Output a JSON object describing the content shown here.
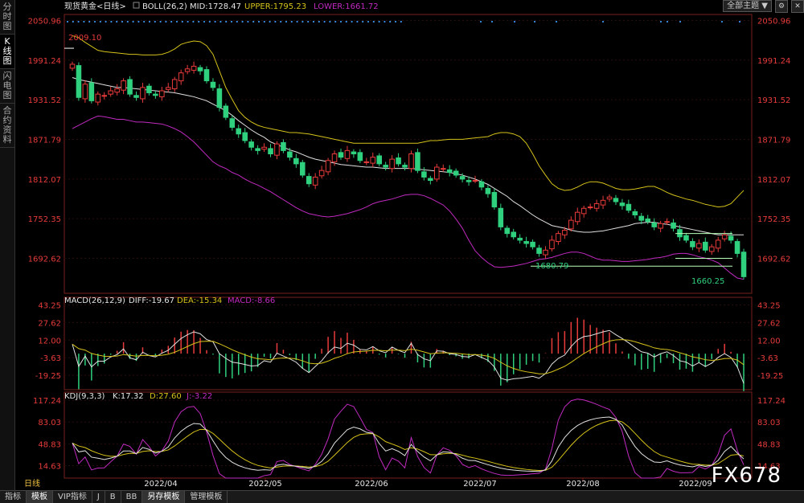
{
  "sidebar": {
    "tabs": [
      "分时图",
      "K线图",
      "闪电图",
      "合约资料"
    ]
  },
  "main": {
    "title": "现货黄金<日线>",
    "boll_label": "BOLL(26,2)",
    "mid_label": "MID:1728.47",
    "upper_label": "UPPER:1795.23",
    "lower_label": "LOWER:1661.72",
    "theme_select": "全部主题",
    "ann_high": "2009.10",
    "ann_mid": "1680.79",
    "ann_low": "1660.25",
    "yticks": [
      "2050.96",
      "1991.24",
      "1931.52",
      "1871.79",
      "1812.07",
      "1752.35",
      "1692.62"
    ]
  },
  "macd": {
    "title": "MACD(26,12,9)",
    "diff": "DIFF:-19.67",
    "dea": "DEA:-15.34",
    "macd": "MACD:-8.66",
    "yticks": [
      "43.25",
      "27.62",
      "12.00",
      "-3.63",
      "-19.25"
    ]
  },
  "kdj": {
    "title": "KDJ(9,3,3)",
    "k": "K:17.32",
    "d": "D:27.60",
    "j": "J:-3.22",
    "yticks": [
      "117.24",
      "83.03",
      "48.83",
      "14.63"
    ]
  },
  "xaxis": {
    "labels": [
      "2022/04",
      "2022/05",
      "2022/06",
      "2022/07",
      "2022/08",
      "2022/09"
    ],
    "period": "日线"
  },
  "bottom": {
    "tabs": [
      "指标",
      "模板",
      "VIP指标",
      "J",
      "B",
      "BB",
      "另存模板",
      "管理模板"
    ]
  },
  "watermark": "FX678",
  "colors": {
    "up": "#e83b3b",
    "down": "#2fd07e",
    "upper": "#d4c21a",
    "mid": "#e0e0e0",
    "lower": "#c02ac0",
    "dea": "#d4c21a",
    "kdj_j": "#c02ac0"
  },
  "chart_data": {
    "type": "candlestick",
    "title": "现货黄金<日线>",
    "ylim": [
      1640,
      2060
    ],
    "close": [
      1985,
      1935,
      1955,
      1930,
      1940,
      1938,
      1945,
      1948,
      1960,
      1940,
      1935,
      1950,
      1942,
      1938,
      1945,
      1950,
      1962,
      1972,
      1978,
      1982,
      1975,
      1960,
      1950,
      1920,
      1905,
      1890,
      1880,
      1870,
      1860,
      1855,
      1860,
      1850,
      1865,
      1855,
      1845,
      1835,
      1818,
      1805,
      1815,
      1825,
      1840,
      1850,
      1845,
      1855,
      1850,
      1840,
      1838,
      1845,
      1835,
      1830,
      1842,
      1835,
      1830,
      1850,
      1825,
      1815,
      1810,
      1830,
      1828,
      1822,
      1818,
      1812,
      1808,
      1810,
      1800,
      1790,
      1770,
      1740,
      1730,
      1725,
      1720,
      1715,
      1710,
      1700,
      1705,
      1720,
      1730,
      1735,
      1750,
      1762,
      1768,
      1770,
      1775,
      1780,
      1785,
      1778,
      1772,
      1765,
      1758,
      1750,
      1748,
      1740,
      1745,
      1748,
      1738,
      1725,
      1720,
      1710,
      1715,
      1705,
      1710,
      1720,
      1728,
      1720,
      1700,
      1665
    ],
    "series": [
      {
        "name": "MID",
        "values": [
          1965,
          1962,
          1960,
          1958,
          1956,
          1954,
          1952,
          1950,
          1950,
          1949,
          1948,
          1947,
          1946,
          1945,
          1944,
          1943,
          1942,
          1940,
          1938,
          1936,
          1933,
          1930,
          1925,
          1920,
          1915,
          1908,
          1900,
          1893,
          1886,
          1880,
          1875,
          1868,
          1864,
          1860,
          1856,
          1853,
          1849,
          1845,
          1842,
          1840,
          1838,
          1836,
          1834,
          1833,
          1832,
          1831,
          1830,
          1830,
          1829,
          1828,
          1828,
          1828,
          1828,
          1828,
          1827,
          1826,
          1825,
          1824,
          1823,
          1822,
          1820,
          1818,
          1815,
          1812,
          1808,
          1804,
          1798,
          1792,
          1786,
          1778,
          1772,
          1765,
          1758,
          1752,
          1747,
          1742,
          1740,
          1738,
          1735,
          1733,
          1732,
          1732,
          1733,
          1734,
          1736,
          1738,
          1740,
          1742,
          1745,
          1746,
          1747,
          1747,
          1745,
          1744,
          1742,
          1740,
          1738,
          1736,
          1734,
          1732,
          1730,
          1728,
          1728,
          1728,
          1728,
          1728
        ]
      },
      {
        "name": "UPPER",
        "values": [
          2028,
          2025,
          2018,
          2012,
          2006,
          2004,
          2003,
          2002,
          2001,
          2000,
          2000,
          1999,
          1999,
          1999,
          2000,
          2003,
          2008,
          2015,
          2018,
          2020,
          2019,
          2013,
          2000,
          1975,
          1950,
          1932,
          1915,
          1905,
          1898,
          1893,
          1890,
          1888,
          1886,
          1884,
          1882,
          1882,
          1881,
          1880,
          1878,
          1876,
          1874,
          1872,
          1870,
          1868,
          1866,
          1866,
          1866,
          1866,
          1866,
          1866,
          1866,
          1866,
          1866,
          1866,
          1866,
          1868,
          1870,
          1870,
          1871,
          1872,
          1872,
          1872,
          1873,
          1874,
          1875,
          1876,
          1880,
          1882,
          1882,
          1880,
          1876,
          1866,
          1850,
          1832,
          1818,
          1805,
          1798,
          1795,
          1796,
          1800,
          1805,
          1808,
          1808,
          1806,
          1802,
          1798,
          1796,
          1796,
          1797,
          1799,
          1801,
          1801,
          1797,
          1792,
          1788,
          1785,
          1782,
          1780,
          1777,
          1774,
          1772,
          1770,
          1771,
          1775,
          1785,
          1795
        ]
      },
      {
        "name": "LOWER",
        "values": [
          1888,
          1893,
          1898,
          1903,
          1907,
          1906,
          1904,
          1902,
          1902,
          1900,
          1898,
          1898,
          1897,
          1896,
          1895,
          1892,
          1888,
          1883,
          1876,
          1868,
          1858,
          1848,
          1838,
          1832,
          1828,
          1822,
          1818,
          1812,
          1807,
          1803,
          1798,
          1793,
          1787,
          1781,
          1775,
          1769,
          1764,
          1760,
          1758,
          1756,
          1755,
          1756,
          1758,
          1760,
          1763,
          1766,
          1770,
          1775,
          1778,
          1780,
          1782,
          1785,
          1788,
          1789,
          1789,
          1787,
          1783,
          1778,
          1773,
          1764,
          1752,
          1738,
          1720,
          1704,
          1694,
          1686,
          1680,
          1679,
          1680,
          1681,
          1683,
          1685,
          1688,
          1691,
          1692,
          1694,
          1697,
          1700,
          1702,
          1702,
          1700,
          1696,
          1692,
          1690,
          1690,
          1689,
          1688,
          1688,
          1689,
          1690,
          1691,
          1693,
          1694,
          1696,
          1699,
          1700,
          1700,
          1698,
          1695,
          1693,
          1690,
          1686,
          1678,
          1670,
          1663,
          1661
        ]
      }
    ],
    "annotations": [
      {
        "label": "2009.10",
        "value": 2009.1
      },
      {
        "label": "1680.79",
        "value": 1680.79
      },
      {
        "label": "1660.25",
        "value": 1660.25
      }
    ],
    "macd": {
      "ylim": [
        -32,
        50
      ],
      "diff": -19.67,
      "dea": -15.34,
      "macd": -8.66
    },
    "kdj": {
      "ylim": [
        -5,
        130
      ],
      "k": 17.32,
      "d": 27.6,
      "j": -3.22
    }
  }
}
